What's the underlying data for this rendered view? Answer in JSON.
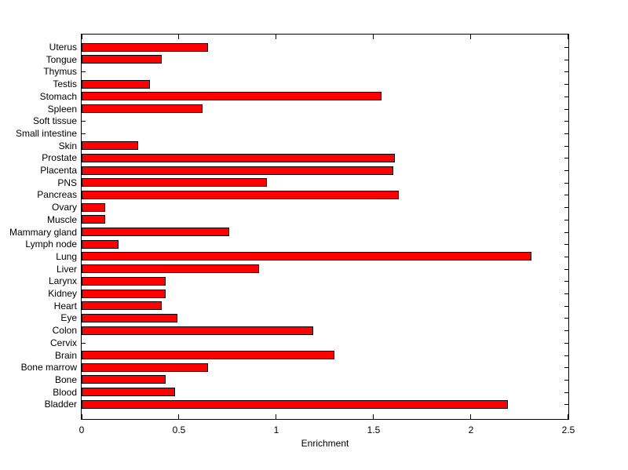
{
  "figure": {
    "background": "#FFFFFF",
    "text_color": "#000000"
  },
  "chart_data": {
    "type": "bar",
    "orientation": "horizontal",
    "title": "",
    "xlabel": "Enrichment",
    "ylabel": "",
    "xlim": [
      0,
      2.5
    ],
    "xtick_values": [
      0,
      0.5,
      1,
      1.5,
      2,
      2.5
    ],
    "xtick_labels": [
      "0",
      "0.5",
      "1",
      "1.5",
      "2",
      "2.5"
    ],
    "grid": false,
    "legend": null,
    "bar_color": "#FF0000",
    "bar_edge_color": "#000000",
    "axis_color": "#000000",
    "categories": [
      "Uterus",
      "Tongue",
      "Thymus",
      "Testis",
      "Stomach",
      "Spleen",
      "Soft tissue",
      "Small intestine",
      "Skin",
      "Prostate",
      "Placenta",
      "PNS",
      "Pancreas",
      "Ovary",
      "Muscle",
      "Mammary gland",
      "Lymph node",
      "Lung",
      "Liver",
      "Larynx",
      "Kidney",
      "Heart",
      "Eye",
      "Colon",
      "Cervix",
      "Brain",
      "Bone marrow",
      "Bone",
      "Blood",
      "Bladder"
    ],
    "values": [
      0.65,
      0.41,
      0,
      0.35,
      1.54,
      0.62,
      0,
      0,
      0.29,
      1.61,
      1.6,
      0.95,
      1.63,
      0.12,
      0.12,
      0.76,
      0.19,
      2.31,
      0.91,
      0.43,
      0.43,
      0.41,
      0.49,
      1.19,
      0,
      1.3,
      0.65,
      0.43,
      0.48,
      2.19
    ]
  }
}
